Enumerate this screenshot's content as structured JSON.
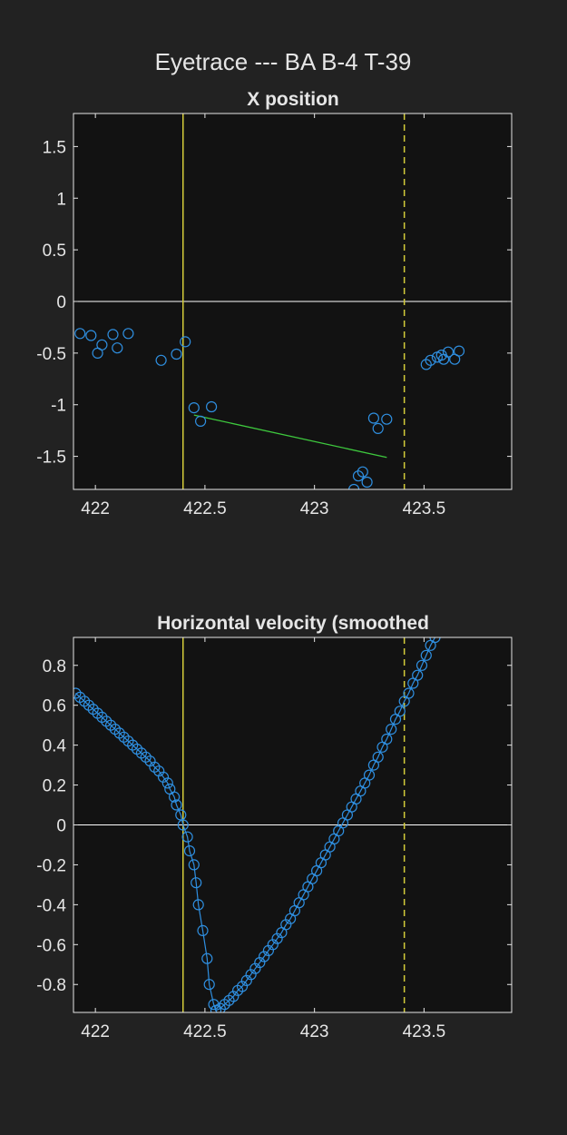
{
  "figure": {
    "title": "Eyetrace --- BA B-4 T-39",
    "colors": {
      "background": "#222222",
      "axes_bg": "#121212",
      "axes_border": "#e6e6e6",
      "zero_line": "#ffffff",
      "marker": "#2f8fe0",
      "event_line": "#d4cc3a",
      "fit_line": "#3ec93e"
    }
  },
  "chart_data": [
    {
      "type": "scatter",
      "title": "X position",
      "xlabel": "",
      "ylabel": "",
      "xlim": [
        421.9,
        423.9
      ],
      "ylim": [
        -1.82,
        1.82
      ],
      "xticks": [
        422,
        422.5,
        423,
        423.5
      ],
      "xtick_labels": [
        "422",
        "422.5",
        "423",
        "423.5"
      ],
      "yticks": [
        -1.5,
        -1,
        -0.5,
        0,
        0.5,
        1,
        1.5
      ],
      "ytick_labels": [
        "-1.5",
        "-1",
        "-0.5",
        "0",
        "0.5",
        "1",
        "1.5"
      ],
      "grid": false,
      "zero_line": true,
      "vertical_lines": [
        {
          "x": 422.4,
          "style": "solid"
        },
        {
          "x": 423.41,
          "style": "dashed"
        }
      ],
      "series": [
        {
          "points": [
            [
              421.93,
              -0.31
            ],
            [
              421.98,
              -0.33
            ],
            [
              422.01,
              -0.5
            ],
            [
              422.03,
              -0.42
            ],
            [
              422.08,
              -0.32
            ],
            [
              422.1,
              -0.45
            ],
            [
              422.15,
              -0.31
            ],
            [
              422.3,
              -0.57
            ],
            [
              422.37,
              -0.51
            ],
            [
              422.41,
              -0.39
            ],
            [
              422.45,
              -1.03
            ],
            [
              422.48,
              -1.16
            ],
            [
              422.53,
              -1.02
            ],
            [
              423.18,
              -1.82
            ],
            [
              423.2,
              -1.69
            ],
            [
              423.22,
              -1.65
            ],
            [
              423.24,
              -1.75
            ],
            [
              423.27,
              -1.13
            ],
            [
              423.29,
              -1.23
            ],
            [
              423.33,
              -1.14
            ],
            [
              423.51,
              -0.61
            ],
            [
              423.53,
              -0.57
            ],
            [
              423.56,
              -0.54
            ],
            [
              423.58,
              -0.52
            ],
            [
              423.59,
              -0.56
            ],
            [
              423.61,
              -0.49
            ],
            [
              423.64,
              -0.56
            ],
            [
              423.66,
              -0.48
            ]
          ]
        }
      ],
      "fit_line": {
        "x": [
          422.45,
          423.33
        ],
        "y": [
          -1.1,
          -1.51
        ]
      }
    },
    {
      "type": "line",
      "title": "Horizontal velocity (smoothed",
      "xlabel": "",
      "ylabel": "",
      "xlim": [
        421.9,
        423.9
      ],
      "ylim": [
        -0.94,
        0.94
      ],
      "xticks": [
        422,
        422.5,
        423,
        423.5
      ],
      "xtick_labels": [
        "422",
        "422.5",
        "423",
        "423.5"
      ],
      "yticks": [
        -0.8,
        -0.6,
        -0.4,
        -0.2,
        0,
        0.2,
        0.4,
        0.6,
        0.8
      ],
      "ytick_labels": [
        "-0.8",
        "-0.6",
        "-0.4",
        "-0.2",
        "0",
        "0.2",
        "0.4",
        "0.6",
        "0.8"
      ],
      "grid": false,
      "zero_line": true,
      "vertical_lines": [
        {
          "x": 422.4,
          "style": "solid"
        },
        {
          "x": 423.41,
          "style": "dashed"
        }
      ],
      "series": [
        {
          "markers": true,
          "points": [
            [
              421.91,
              0.66
            ],
            [
              421.93,
              0.64
            ],
            [
              421.95,
              0.62
            ],
            [
              421.97,
              0.6
            ],
            [
              421.99,
              0.58
            ],
            [
              422.01,
              0.56
            ],
            [
              422.03,
              0.54
            ],
            [
              422.05,
              0.52
            ],
            [
              422.07,
              0.5
            ],
            [
              422.09,
              0.48
            ],
            [
              422.11,
              0.46
            ],
            [
              422.13,
              0.44
            ],
            [
              422.15,
              0.42
            ],
            [
              422.17,
              0.4
            ],
            [
              422.19,
              0.38
            ],
            [
              422.21,
              0.36
            ],
            [
              422.23,
              0.34
            ],
            [
              422.25,
              0.32
            ],
            [
              422.27,
              0.29
            ],
            [
              422.29,
              0.27
            ],
            [
              422.31,
              0.24
            ],
            [
              422.33,
              0.21
            ],
            [
              422.34,
              0.18
            ],
            [
              422.36,
              0.14
            ],
            [
              422.37,
              0.1
            ],
            [
              422.39,
              0.05
            ],
            [
              422.4,
              0.0
            ],
            [
              422.42,
              -0.06
            ],
            [
              422.43,
              -0.13
            ],
            [
              422.45,
              -0.2
            ],
            [
              422.46,
              -0.29
            ],
            [
              422.47,
              -0.4
            ],
            [
              422.49,
              -0.53
            ],
            [
              422.51,
              -0.67
            ],
            [
              422.52,
              -0.8
            ],
            [
              422.54,
              -0.9
            ],
            [
              422.55,
              -0.93
            ],
            [
              422.57,
              -0.92
            ],
            [
              422.59,
              -0.9
            ],
            [
              422.61,
              -0.88
            ],
            [
              422.63,
              -0.86
            ],
            [
              422.65,
              -0.83
            ],
            [
              422.67,
              -0.81
            ],
            [
              422.69,
              -0.78
            ],
            [
              422.71,
              -0.75
            ],
            [
              422.73,
              -0.72
            ],
            [
              422.75,
              -0.69
            ],
            [
              422.77,
              -0.66
            ],
            [
              422.79,
              -0.63
            ],
            [
              422.81,
              -0.6
            ],
            [
              422.83,
              -0.57
            ],
            [
              422.85,
              -0.54
            ],
            [
              422.87,
              -0.5
            ],
            [
              422.89,
              -0.47
            ],
            [
              422.91,
              -0.43
            ],
            [
              422.93,
              -0.39
            ],
            [
              422.95,
              -0.35
            ],
            [
              422.97,
              -0.31
            ],
            [
              422.99,
              -0.27
            ],
            [
              423.01,
              -0.23
            ],
            [
              423.03,
              -0.19
            ],
            [
              423.05,
              -0.15
            ],
            [
              423.07,
              -0.11
            ],
            [
              423.09,
              -0.07
            ],
            [
              423.11,
              -0.03
            ],
            [
              423.13,
              0.01
            ],
            [
              423.15,
              0.05
            ],
            [
              423.17,
              0.09
            ],
            [
              423.19,
              0.13
            ],
            [
              423.21,
              0.17
            ],
            [
              423.23,
              0.21
            ],
            [
              423.25,
              0.25
            ],
            [
              423.27,
              0.3
            ],
            [
              423.29,
              0.34
            ],
            [
              423.31,
              0.39
            ],
            [
              423.33,
              0.43
            ],
            [
              423.35,
              0.48
            ],
            [
              423.37,
              0.53
            ],
            [
              423.39,
              0.57
            ],
            [
              423.41,
              0.62
            ],
            [
              423.43,
              0.66
            ],
            [
              423.45,
              0.71
            ],
            [
              423.47,
              0.75
            ],
            [
              423.49,
              0.8
            ],
            [
              423.51,
              0.85
            ],
            [
              423.53,
              0.9
            ],
            [
              423.55,
              0.94
            ]
          ]
        }
      ]
    }
  ]
}
